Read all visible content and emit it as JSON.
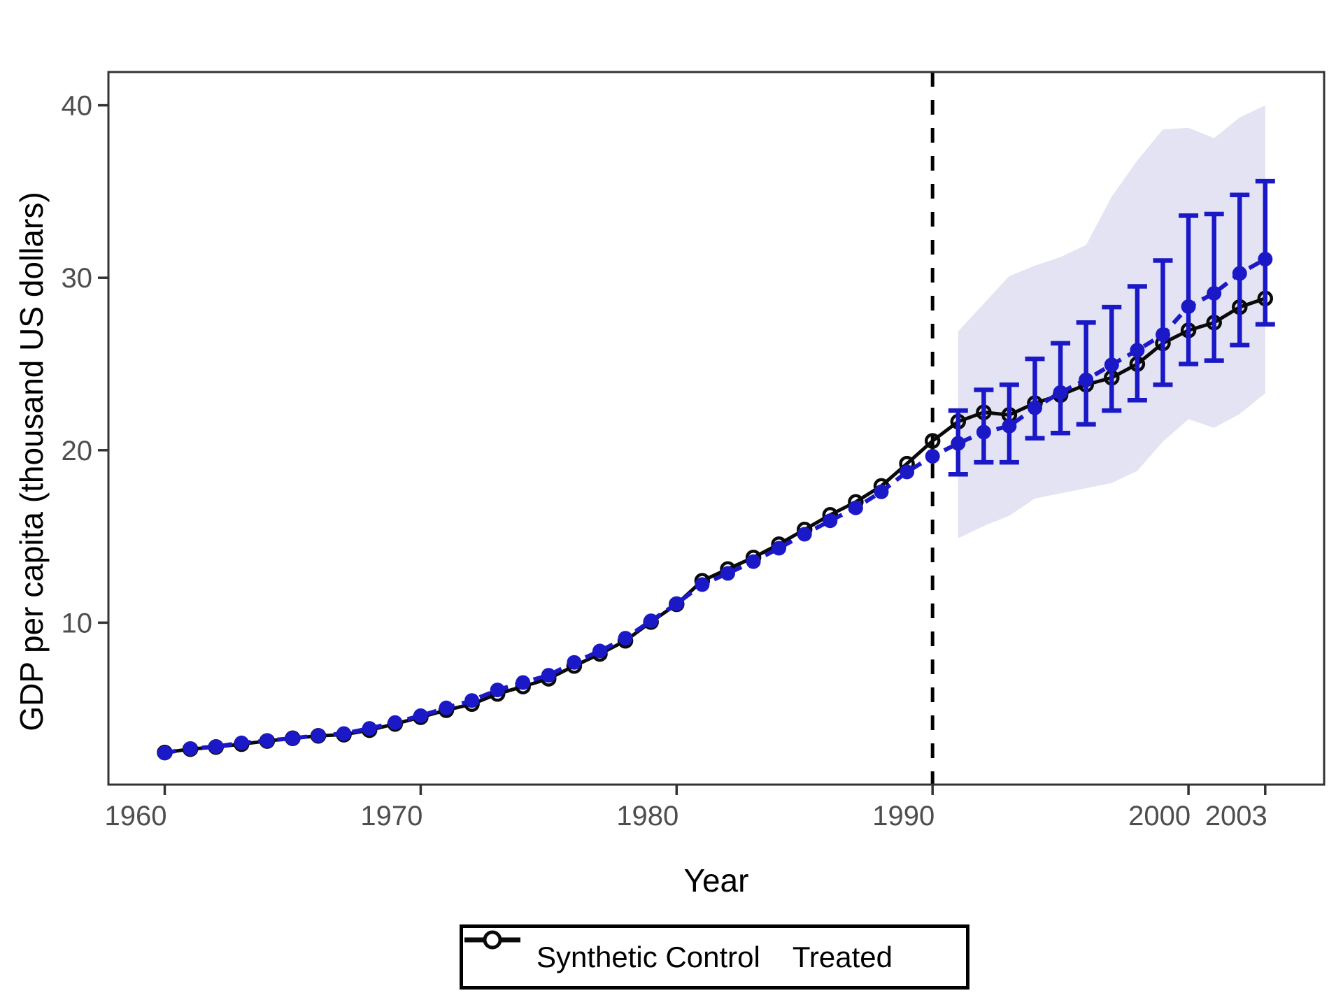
{
  "y_axis": {
    "title": "GDP per capita (thousand US dollars)",
    "ticks": [
      10,
      20,
      30,
      40
    ]
  },
  "x_axis": {
    "title": "Year",
    "ticks": [
      1960,
      1970,
      1980,
      1990,
      2000,
      2003
    ]
  },
  "legend": {
    "items": [
      {
        "label": "Synthetic Control",
        "marker": "filled-dot-dashed-line"
      },
      {
        "label": "Treated",
        "marker": "open-circle-solid-line"
      }
    ]
  },
  "colors": {
    "synthetic": "#1b19c7",
    "treated": "#0a0a0a",
    "ribbon": "#e3e3f4",
    "axis_text": "#4d4d4d",
    "axis_line": "#333333",
    "treatment_line": "#000000"
  },
  "chart_data": {
    "type": "line",
    "title": "",
    "xlabel": "Year",
    "ylabel": "GDP per capita (thousand US dollars)",
    "xlim": [
      1957.8,
      2005.3
    ],
    "ylim": [
      0.61,
      41.93
    ],
    "grid": false,
    "legend_position": "bottom",
    "treatment_year": 1990,
    "x": [
      1960,
      1961,
      1962,
      1963,
      1964,
      1965,
      1966,
      1967,
      1968,
      1969,
      1970,
      1971,
      1972,
      1973,
      1974,
      1975,
      1976,
      1977,
      1978,
      1979,
      1980,
      1981,
      1982,
      1983,
      1984,
      1985,
      1986,
      1987,
      1988,
      1989,
      1990,
      1991,
      1992,
      1993,
      1994,
      1995,
      1996,
      1997,
      1998,
      1999,
      2000,
      2001,
      2002,
      2003
    ],
    "series": [
      {
        "name": "Synthetic Control",
        "style": "dashed, filled circles, blue",
        "values": [
          2.45,
          2.7,
          2.82,
          3.03,
          3.16,
          3.3,
          3.46,
          3.57,
          3.87,
          4.21,
          4.61,
          5.06,
          5.49,
          6.1,
          6.53,
          6.95,
          7.7,
          8.36,
          9.1,
          10.11,
          11.1,
          12.21,
          12.86,
          13.54,
          14.32,
          15.13,
          15.91,
          16.66,
          17.59,
          18.74,
          19.65,
          20.4,
          21.05,
          21.4,
          22.46,
          23.35,
          24.08,
          24.95,
          25.8,
          26.7,
          28.33,
          29.1,
          30.25,
          31.08
        ]
      },
      {
        "name": "Treated",
        "style": "solid, open circles, black",
        "values": [
          2.47,
          2.67,
          2.79,
          2.96,
          3.14,
          3.3,
          3.44,
          3.51,
          3.77,
          4.13,
          4.52,
          4.93,
          5.28,
          5.87,
          6.3,
          6.75,
          7.49,
          8.19,
          8.95,
          10.04,
          11.07,
          12.43,
          13.11,
          13.78,
          14.55,
          15.4,
          16.25,
          17.0,
          17.93,
          19.22,
          20.54,
          21.66,
          22.2,
          22.05,
          22.73,
          23.2,
          23.8,
          24.2,
          25.0,
          26.2,
          26.95,
          27.4,
          28.3,
          28.8
        ]
      }
    ],
    "error_bars": {
      "series": "Synthetic Control",
      "x": [
        1991,
        1992,
        1993,
        1994,
        1995,
        1996,
        1997,
        1998,
        1999,
        2000,
        2001,
        2002,
        2003
      ],
      "lower": [
        18.6,
        19.3,
        19.3,
        20.7,
        21.0,
        21.5,
        22.3,
        22.9,
        23.8,
        25.0,
        25.2,
        26.1,
        27.3
      ],
      "upper": [
        22.3,
        23.5,
        23.8,
        25.3,
        26.2,
        27.4,
        28.3,
        29.5,
        31.0,
        33.6,
        33.7,
        34.8,
        35.6
      ]
    },
    "ribbon": {
      "x": [
        1991,
        1992,
        1993,
        1994,
        1995,
        1996,
        1997,
        1998,
        1999,
        2000,
        2001,
        2002,
        2003
      ],
      "lower": [
        14.9,
        15.6,
        16.2,
        17.2,
        17.5,
        17.8,
        18.1,
        18.8,
        20.5,
        21.8,
        21.3,
        22.1,
        23.3
      ],
      "upper": [
        26.9,
        28.5,
        30.1,
        30.7,
        31.2,
        31.9,
        34.7,
        36.8,
        38.6,
        38.7,
        38.1,
        39.3,
        40.0
      ]
    }
  }
}
